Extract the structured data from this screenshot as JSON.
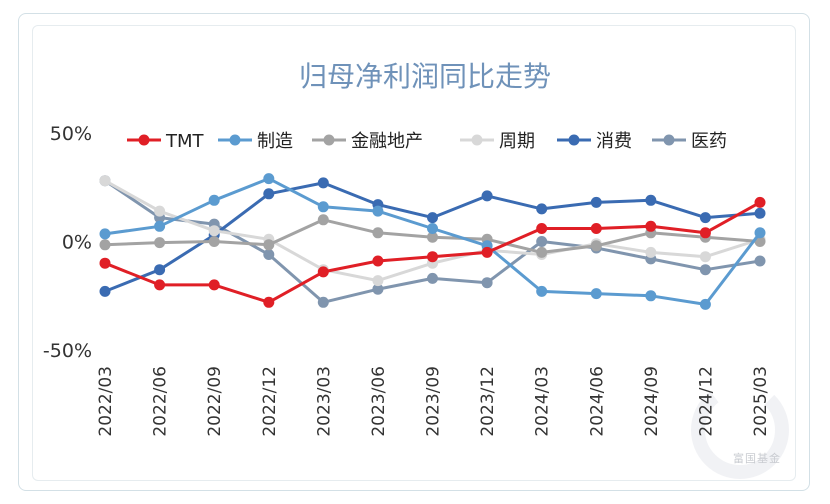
{
  "chart_data": {
    "type": "line",
    "title": "归母净利润同比走势",
    "y_tick_labels": [
      "50%",
      "0%",
      "-50%"
    ],
    "y_ticks": [
      50,
      0,
      -50
    ],
    "ylim": [
      -50,
      50
    ],
    "categories": [
      "2022/03",
      "2022/06",
      "2022/09",
      "2022/12",
      "2023/03",
      "2023/06",
      "2023/09",
      "2023/12",
      "2024/03",
      "2024/06",
      "2024/09",
      "2024/12",
      "2025/03"
    ],
    "legend_position": "top",
    "grid": false,
    "series": [
      {
        "name": "TMT",
        "color": "#e01f26",
        "values": [
          -10,
          -20,
          -20,
          -28,
          -14,
          -9,
          -7,
          -5,
          6,
          6,
          7,
          4,
          18
        ]
      },
      {
        "name": "制造",
        "color": "#5b9bd0",
        "values": [
          3.5,
          7,
          19,
          29,
          16,
          14,
          6,
          -2,
          -23,
          -24,
          -25,
          -29,
          4
        ]
      },
      {
        "name": "金融地产",
        "color": "#a3a3a3",
        "values": [
          -1.5,
          -0.5,
          0,
          -1.5,
          10,
          4,
          2,
          1,
          -5,
          -2,
          4,
          2,
          0
        ]
      },
      {
        "name": "周期",
        "color": "#d8d8d8",
        "values": [
          28,
          14,
          5,
          1,
          -13,
          -18,
          -10,
          -4,
          -6,
          -1,
          -5,
          -7,
          1
        ]
      },
      {
        "name": "消费",
        "color": "#3a6bb2",
        "values": [
          -23,
          -13,
          3,
          22,
          27,
          17,
          11,
          21,
          15,
          18,
          19,
          11,
          13
        ]
      },
      {
        "name": "医药",
        "color": "#8095ae",
        "values": [
          28,
          11,
          8,
          -6,
          -28,
          -22,
          -17,
          -19,
          0,
          -3,
          -8,
          -13,
          -9
        ]
      }
    ]
  },
  "watermark": {
    "text": "富国基金"
  }
}
